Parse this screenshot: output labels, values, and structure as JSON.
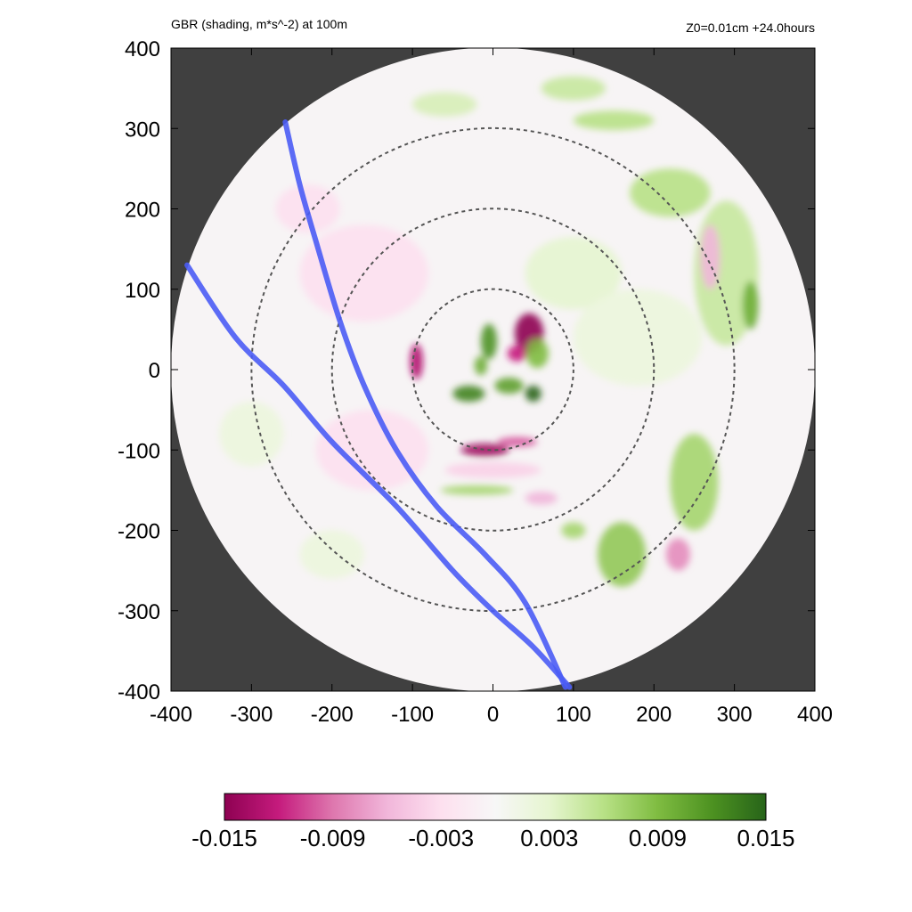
{
  "chart_data": {
    "type": "heatmap",
    "title": "GBR (shading, m*s^-2) at 100m",
    "subtitle_right": "Z0=0.01cm  +24.0hours",
    "xlim": [
      -400,
      400
    ],
    "ylim": [
      -400,
      400
    ],
    "x_ticks": [
      "-400",
      "-300",
      "-200",
      "-100",
      "0",
      "100",
      "200",
      "300",
      "400"
    ],
    "y_ticks": [
      "400",
      "300",
      "200",
      "100",
      "0",
      "-100",
      "-200",
      "-300",
      "-400"
    ],
    "x_tick_values": [
      -400,
      -300,
      -200,
      -100,
      0,
      100,
      200,
      300,
      400
    ],
    "y_tick_values": [
      400,
      300,
      200,
      100,
      0,
      -100,
      -200,
      -300,
      -400
    ],
    "domain_radius": 400,
    "range_rings_radius": [
      100,
      200,
      300
    ],
    "background_color": "#404040",
    "colorbar": {
      "range": [
        -0.015,
        0.015
      ],
      "tick_labels": [
        "-0.015",
        "-0.009",
        "-0.003",
        "0.003",
        "0.009",
        "0.015"
      ],
      "tick_values": [
        -0.015,
        -0.009,
        -0.003,
        0.003,
        0.009,
        0.015
      ],
      "colors": [
        "#8e0152",
        "#c51b7d",
        "#de77ae",
        "#f1b6da",
        "#fde0ef",
        "#f7f7f7",
        "#e6f5d0",
        "#b8e186",
        "#7fbc41",
        "#4d9221",
        "#276419"
      ]
    },
    "tracks": [
      {
        "color": "#4a5cf5",
        "points": [
          [
            -258,
            308
          ],
          [
            -240,
            230
          ],
          [
            -220,
            160
          ],
          [
            -190,
            60
          ],
          [
            -160,
            -20
          ],
          [
            -120,
            -100
          ],
          [
            -70,
            -170
          ],
          [
            -10,
            -230
          ],
          [
            40,
            -290
          ],
          [
            90,
            -395
          ]
        ]
      },
      {
        "color": "#4a5cf5",
        "points": [
          [
            -380,
            130
          ],
          [
            -320,
            40
          ],
          [
            -260,
            -20
          ],
          [
            -200,
            -90
          ],
          [
            -120,
            -170
          ],
          [
            -50,
            -250
          ],
          [
            0,
            -300
          ],
          [
            50,
            -345
          ],
          [
            95,
            -395
          ]
        ]
      }
    ],
    "features": [
      {
        "x": 45,
        "y": 45,
        "rx": 18,
        "ry": 25,
        "value": -0.015
      },
      {
        "x": 30,
        "y": 20,
        "rx": 12,
        "ry": 10,
        "value": -0.012
      },
      {
        "x": -5,
        "y": 35,
        "rx": 10,
        "ry": 22,
        "value": 0.012
      },
      {
        "x": -15,
        "y": 5,
        "rx": 8,
        "ry": 12,
        "value": 0.01
      },
      {
        "x": 20,
        "y": -20,
        "rx": 18,
        "ry": 10,
        "value": 0.011
      },
      {
        "x": -30,
        "y": -30,
        "rx": 20,
        "ry": 10,
        "value": 0.013
      },
      {
        "x": 50,
        "y": -30,
        "rx": 10,
        "ry": 10,
        "value": 0.015
      },
      {
        "x": 55,
        "y": 20,
        "rx": 14,
        "ry": 18,
        "value": 0.009
      },
      {
        "x": -95,
        "y": 10,
        "rx": 8,
        "ry": 22,
        "value": -0.013
      },
      {
        "x": -10,
        "y": -100,
        "rx": 30,
        "ry": 8,
        "value": -0.014
      },
      {
        "x": 30,
        "y": -90,
        "rx": 25,
        "ry": 6,
        "value": -0.01
      },
      {
        "x": -20,
        "y": -150,
        "rx": 45,
        "ry": 6,
        "value": 0.007
      },
      {
        "x": 0,
        "y": -125,
        "rx": 60,
        "ry": 10,
        "value": -0.004
      },
      {
        "x": 100,
        "y": 120,
        "rx": 60,
        "ry": 45,
        "value": 0.003
      },
      {
        "x": 180,
        "y": 40,
        "rx": 80,
        "ry": 60,
        "value": 0.002
      },
      {
        "x": -160,
        "y": 120,
        "rx": 80,
        "ry": 60,
        "value": -0.003
      },
      {
        "x": -150,
        "y": -100,
        "rx": 70,
        "ry": 50,
        "value": -0.003
      },
      {
        "x": 290,
        "y": 120,
        "rx": 40,
        "ry": 90,
        "value": 0.005
      },
      {
        "x": 220,
        "y": 220,
        "rx": 50,
        "ry": 30,
        "value": 0.006
      },
      {
        "x": 150,
        "y": 310,
        "rx": 50,
        "ry": 12,
        "value": 0.006
      },
      {
        "x": 250,
        "y": -140,
        "rx": 30,
        "ry": 60,
        "value": 0.007
      },
      {
        "x": 160,
        "y": -230,
        "rx": 30,
        "ry": 40,
        "value": 0.008
      },
      {
        "x": 230,
        "y": -230,
        "rx": 15,
        "ry": 20,
        "value": -0.008
      },
      {
        "x": 100,
        "y": 350,
        "rx": 40,
        "ry": 15,
        "value": 0.005
      },
      {
        "x": -60,
        "y": 330,
        "rx": 40,
        "ry": 15,
        "value": 0.004
      },
      {
        "x": -230,
        "y": 200,
        "rx": 40,
        "ry": 30,
        "value": -0.003
      },
      {
        "x": -300,
        "y": -80,
        "rx": 40,
        "ry": 40,
        "value": 0.002
      },
      {
        "x": -200,
        "y": -230,
        "rx": 40,
        "ry": 30,
        "value": 0.002
      },
      {
        "x": 270,
        "y": 140,
        "rx": 12,
        "ry": 40,
        "value": -0.006
      },
      {
        "x": 320,
        "y": 80,
        "rx": 10,
        "ry": 30,
        "value": 0.01
      },
      {
        "x": 60,
        "y": -160,
        "rx": 20,
        "ry": 8,
        "value": -0.006
      },
      {
        "x": 100,
        "y": -200,
        "rx": 15,
        "ry": 10,
        "value": 0.007
      }
    ]
  }
}
